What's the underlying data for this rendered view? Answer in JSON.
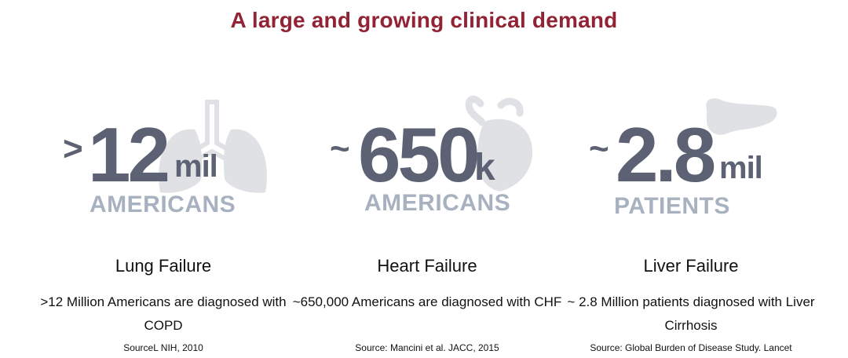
{
  "title": "A large and growing clinical demand",
  "columns": [
    {
      "icon": "lungs-icon",
      "prefix": ">",
      "value": "12",
      "unit": "mil",
      "sublabel": "AMERICANS",
      "heading": "Lung Failure",
      "description": ">12 Million Americans are diagnosed with COPD",
      "source": "SourceL NIH, 2010"
    },
    {
      "icon": "heart-icon",
      "prefix": "~",
      "value": "650",
      "unit": "k",
      "sublabel": "AMERICANS",
      "heading": "Heart Failure",
      "description": "~650,000 Americans are diagnosed with CHF",
      "source": "Source: Mancini et al. JACC, 2015"
    },
    {
      "icon": "liver-icon",
      "prefix": "~",
      "value": "2.8",
      "unit": "mil",
      "sublabel": "PATIENTS",
      "heading": "Liver Failure",
      "description": "~ 2.8 Million patients diagnosed with Liver Cirrhosis",
      "source": "Source: Global Burden of Disease Study. Lancet"
    }
  ],
  "colors": {
    "title": "#922335",
    "stat_dark": "#5c6273",
    "stat_light": "#a8b1bf",
    "organ": "#dfe1e4"
  }
}
